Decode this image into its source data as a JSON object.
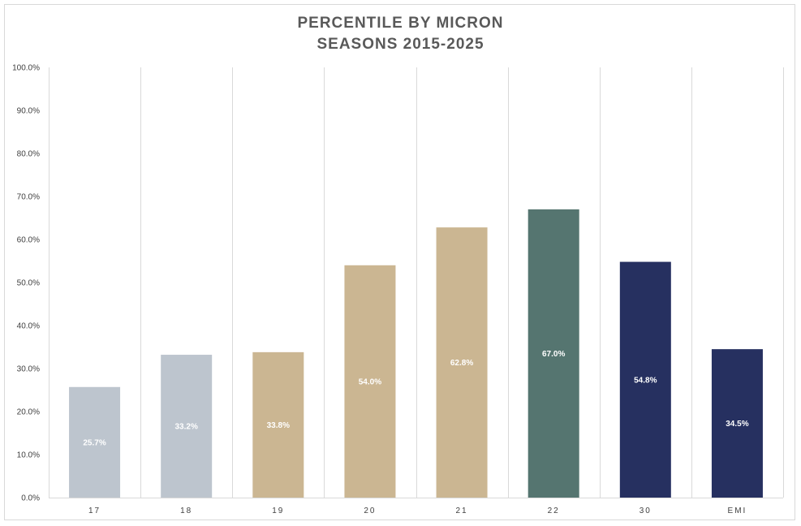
{
  "chart_data": {
    "type": "bar",
    "title": "PERCENTILE BY MICRON",
    "subtitle": "SEASONS 2015-2025",
    "categories": [
      "17",
      "18",
      "19",
      "20",
      "21",
      "22",
      "30",
      "EMI"
    ],
    "values": [
      25.7,
      33.2,
      33.8,
      54.0,
      62.8,
      67.0,
      54.8,
      34.5
    ],
    "data_labels": [
      "25.7%",
      "33.2%",
      "33.8%",
      "54.0%",
      "62.8%",
      "67.0%",
      "54.8%",
      "34.5%"
    ],
    "colors": [
      "#bdc5ce",
      "#bdc5ce",
      "#cbb692",
      "#cbb692",
      "#cbb692",
      "#557570",
      "#263060",
      "#263060"
    ],
    "ylim": [
      0,
      100
    ],
    "yticks": [
      "0.0%",
      "10.0%",
      "20.0%",
      "30.0%",
      "40.0%",
      "50.0%",
      "60.0%",
      "70.0%",
      "80.0%",
      "90.0%",
      "100.0%"
    ],
    "xlabel": "",
    "ylabel": "",
    "grid": "vertical category separators",
    "legend": "none"
  }
}
